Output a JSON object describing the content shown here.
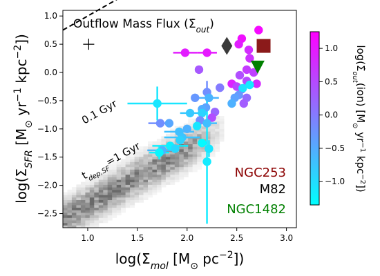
{
  "chart_data": {
    "type": "scatter",
    "title": "Outflow Mass Flux (Σ̇ₒᵤₜ)",
    "title_parts": {
      "main": "Outflow Mass Flux (",
      "sym": "Σ̇",
      "sub": "out",
      "close": ")"
    },
    "xlabel": {
      "pre": "log(Σ",
      "sub": "mol",
      "mid": " [M",
      "sun": "⊙",
      "mid2": " pc",
      "sup": "−2",
      "post": "])"
    },
    "ylabel": {
      "pre": "log(Σ",
      "sub": "SFR",
      "mid": " [M",
      "sun": "⊙",
      "mid2": " yr",
      "sup1": "−1",
      "mid3": " kpc",
      "sup2": "−2",
      "post": "])"
    },
    "xlim": [
      0.75,
      3.1
    ],
    "ylim": [
      -2.75,
      1.1
    ],
    "xticks": [
      1.0,
      1.5,
      2.0,
      2.5,
      3.0
    ],
    "xtick_labels": [
      "1.0",
      "1.5",
      "2.0",
      "2.5",
      "3.0"
    ],
    "yticks": [
      -2.5,
      -2.0,
      -1.5,
      -1.0,
      -0.5,
      0.0,
      0.5,
      1.0
    ],
    "ytick_labels": [
      "−2.5",
      "−2.0",
      "−1.5",
      "−1.0",
      "−0.5",
      "0.0",
      "0.5",
      "1.0"
    ],
    "colorbar": {
      "label": {
        "pre": "log(",
        "sym": "Σ̇",
        "sub": "out",
        "mid": "(ion) [M",
        "sun": "⊙",
        "mid2": " yr",
        "sup1": "−1",
        "mid3": " kpc",
        "sup2": "−2",
        "post": "])"
      },
      "range": [
        -1.35,
        1.25
      ],
      "ticks": [
        -1.0,
        -0.5,
        0.0,
        0.5,
        1.0
      ],
      "tick_labels": [
        "−1.0",
        "−0.5",
        "0.0",
        "0.5",
        "1.0"
      ],
      "colors": [
        "#00ffff",
        "#ff00ff"
      ]
    },
    "lines": [
      {
        "label": "0.1 Gyr",
        "intercept": 1.0,
        "slope": 1.0,
        "style": "dashed",
        "color": "#000000"
      },
      {
        "label_pre": "t",
        "label_sub": "dep,SF",
        "label_post": "=1 Gyr",
        "intercept": 0.0,
        "slope": 1.0,
        "style": "dashed",
        "color": "#000000"
      }
    ],
    "galaxy_labels": [
      {
        "name": "NGC253",
        "color": "#8b0000"
      },
      {
        "name": "M82",
        "color": "#000000"
      },
      {
        "name": "NGC1482",
        "color": "#008000"
      }
    ],
    "special_markers": [
      {
        "label": "NGC253",
        "shape": "square",
        "x": 2.77,
        "y": 0.47,
        "color": "#8b1a1a"
      },
      {
        "label": "M82",
        "shape": "diamond",
        "x": 2.4,
        "y": 0.47,
        "color": "#3a3a3a"
      },
      {
        "label": "NGC1482",
        "shape": "triangle-down",
        "x": 2.71,
        "y": 0.1,
        "color": "#008000"
      },
      {
        "label": "reference",
        "shape": "plus",
        "x": 1.01,
        "y": 0.5,
        "color": "#000000"
      }
    ],
    "points": [
      {
        "x": 1.98,
        "y": 0.35,
        "c": 0.95,
        "xerr": 0.12
      },
      {
        "x": 2.2,
        "y": 0.35,
        "c": 1.0,
        "xerr": 0.1
      },
      {
        "x": 2.12,
        "y": 0.05,
        "c": 0.35
      },
      {
        "x": 2.55,
        "y": 0.6,
        "c": 1.1
      },
      {
        "x": 2.52,
        "y": 0.5,
        "c": 0.95
      },
      {
        "x": 2.72,
        "y": 0.75,
        "c": 1.15
      },
      {
        "x": 2.62,
        "y": 0.4,
        "c": 0.8
      },
      {
        "x": 2.63,
        "y": 0.25,
        "c": 0.75
      },
      {
        "x": 2.6,
        "y": 0.05,
        "c": 0.65
      },
      {
        "x": 2.67,
        "y": 0.0,
        "c": 0.6
      },
      {
        "x": 2.53,
        "y": -0.05,
        "c": 0.45
      },
      {
        "x": 2.7,
        "y": -0.2,
        "c": 0.8
      },
      {
        "x": 2.6,
        "y": -0.15,
        "c": 0.5
      },
      {
        "x": 2.55,
        "y": -0.3,
        "c": 0.35
      },
      {
        "x": 2.45,
        "y": -0.2,
        "c": 0.9
      },
      {
        "x": 2.5,
        "y": -0.25,
        "c": 0.55
      },
      {
        "x": 2.63,
        "y": -0.22,
        "c": -1.15
      },
      {
        "x": 2.56,
        "y": -0.28,
        "c": -1.05
      },
      {
        "x": 2.52,
        "y": -0.4,
        "c": -0.3
      },
      {
        "x": 2.48,
        "y": -0.45,
        "c": -0.4
      },
      {
        "x": 2.45,
        "y": -0.55,
        "c": -0.55
      },
      {
        "x": 2.6,
        "y": -0.45,
        "c": 0.15
      },
      {
        "x": 2.57,
        "y": -0.55,
        "c": 0.3
      },
      {
        "x": 2.33,
        "y": -0.27,
        "c": 0.0
      },
      {
        "x": 2.2,
        "y": -0.35,
        "c": -0.2,
        "yerr": 0.2
      },
      {
        "x": 2.22,
        "y": -0.45,
        "c": -0.6,
        "xerr": 0.1
      },
      {
        "x": 2.08,
        "y": -0.45,
        "c": -0.3
      },
      {
        "x": 2.19,
        "y": -0.62,
        "c": -0.4
      },
      {
        "x": 2.28,
        "y": -0.7,
        "c": 0.2
      },
      {
        "x": 2.25,
        "y": -0.8,
        "c": 0.45
      },
      {
        "x": 2.15,
        "y": -0.65,
        "c": -0.5
      },
      {
        "x": 2.15,
        "y": -0.72,
        "c": -0.9
      },
      {
        "x": 2.13,
        "y": -0.85,
        "c": -0.2
      },
      {
        "x": 2.2,
        "y": -0.9,
        "c": -0.7,
        "xerr": 0.1
      },
      {
        "x": 2.03,
        "y": -0.72,
        "c": -0.8,
        "xerr": 0.1
      },
      {
        "x": 2.1,
        "y": -0.95,
        "c": -1.1
      },
      {
        "x": 2.0,
        "y": -1.0,
        "c": -0.55
      },
      {
        "x": 1.7,
        "y": -0.55,
        "c": -1.1,
        "xerr": 0.3,
        "yerr": 0.3
      },
      {
        "x": 1.73,
        "y": -0.9,
        "c": -0.2,
        "xerr": 0.12
      },
      {
        "x": 1.82,
        "y": -0.9,
        "c": -0.45
      },
      {
        "x": 1.92,
        "y": -1.05,
        "c": -0.7,
        "xerr": 0.15
      },
      {
        "x": 1.95,
        "y": -1.15,
        "c": -0.75,
        "xerr": 0.18
      },
      {
        "x": 1.93,
        "y": -1.2,
        "c": -0.9
      },
      {
        "x": 1.83,
        "y": -1.3,
        "c": -1.2,
        "xerr": 0.18
      },
      {
        "x": 1.88,
        "y": -1.35,
        "c": -0.95
      },
      {
        "x": 1.75,
        "y": -1.38,
        "c": -0.6,
        "xerr": 0.15
      },
      {
        "x": 1.72,
        "y": -1.42,
        "c": -1.25,
        "xerr": 0.1,
        "yerr": 0.12
      },
      {
        "x": 2.15,
        "y": -1.25,
        "c": -1.3
      },
      {
        "x": 2.22,
        "y": -1.35,
        "c": -1.1,
        "yerr": 0.15
      },
      {
        "x": 2.2,
        "y": -1.58,
        "c": -1.15,
        "yerr": 1.1
      }
    ],
    "density_background": true,
    "grid": false
  }
}
